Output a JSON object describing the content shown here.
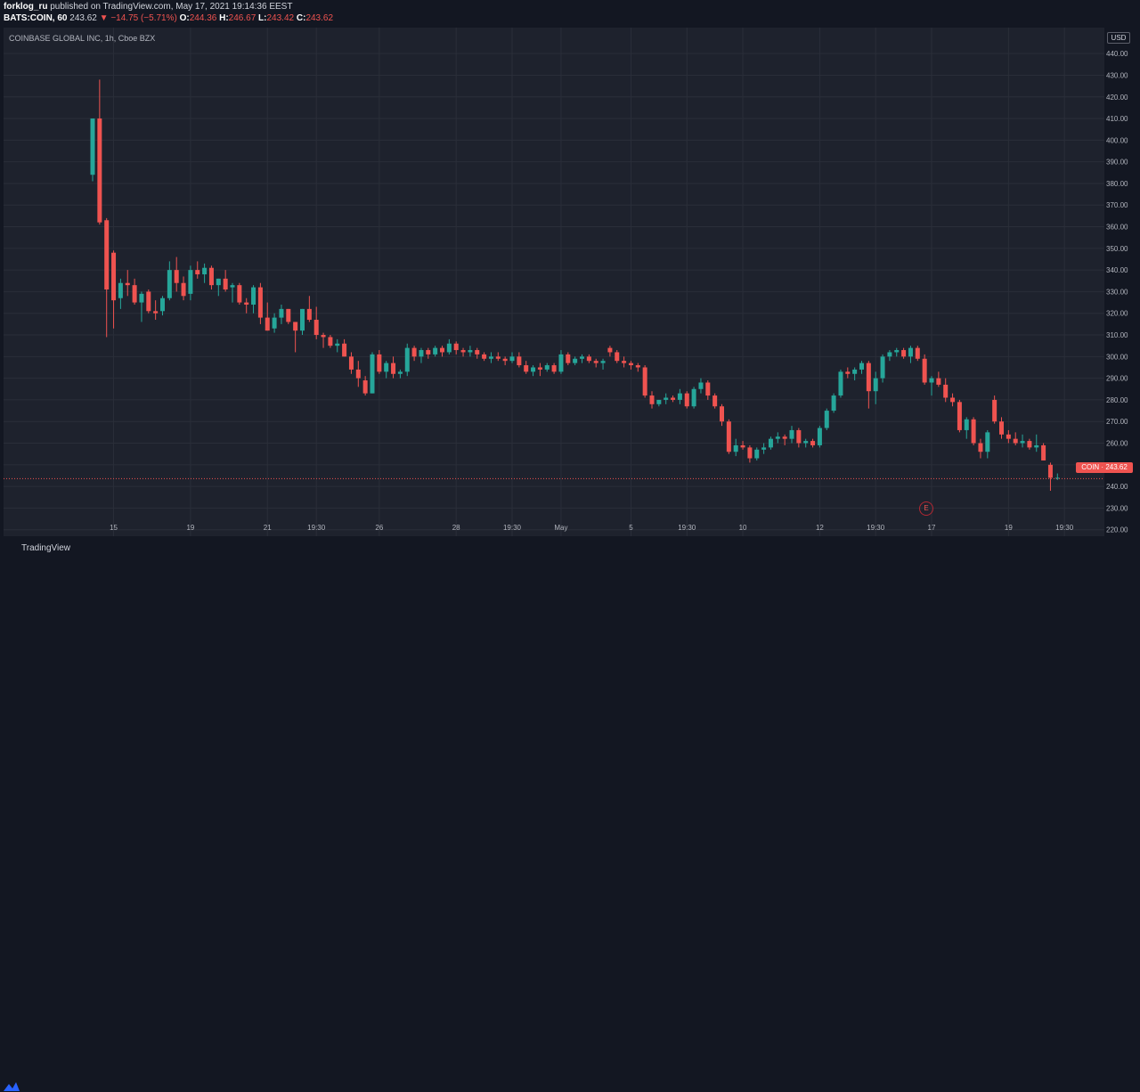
{
  "header": {
    "author": "forklog_ru",
    "published": "published on TradingView.com, May 17, 2021 19:14:36 EEST",
    "symbol": "BATS:COIN, 60",
    "last": "243.62",
    "change": "▼ −14.75 (−5.71%)",
    "o_label": "O:",
    "o_value": "244.36",
    "h_label": "H:",
    "h_value": "246.67",
    "l_label": "L:",
    "l_value": "243.42",
    "c_label": "C:",
    "c_value": "243.62"
  },
  "legend": "COINBASE GLOBAL INC, 1h, Cboe BZX",
  "currency": "USD",
  "price_tag": "COIN · 243.62",
  "earnings_marker": "E",
  "brand": "TradingView",
  "colors": {
    "up": "#26a69a",
    "down": "#ef5350",
    "background": "#1e222d",
    "grid": "#2a2e39"
  },
  "chart_data": {
    "type": "candlestick",
    "ylim": [
      217,
      452
    ],
    "y_ticks": [
      440,
      430,
      420,
      410,
      400,
      390,
      380,
      370,
      360,
      350,
      340,
      330,
      320,
      310,
      300,
      290,
      280,
      270,
      260,
      250,
      240,
      230,
      220
    ],
    "x_ticks": [
      {
        "label": "15",
        "i": 3
      },
      {
        "label": "19",
        "i": 14
      },
      {
        "label": "21",
        "i": 25
      },
      {
        "label": "19:30",
        "i": 32
      },
      {
        "label": "26",
        "i": 41
      },
      {
        "label": "28",
        "i": 52
      },
      {
        "label": "19:30",
        "i": 60
      },
      {
        "label": "May",
        "i": 67
      },
      {
        "label": "5",
        "i": 77
      },
      {
        "label": "19:30",
        "i": 85
      },
      {
        "label": "10",
        "i": 93
      },
      {
        "label": "12",
        "i": 104
      },
      {
        "label": "19:30",
        "i": 112
      },
      {
        "label": "17",
        "i": 120
      },
      {
        "label": "19",
        "i": 131
      },
      {
        "label": "19:30",
        "i": 139
      }
    ],
    "last_price": 243.62,
    "candles": [
      [
        384,
        410,
        381,
        410
      ],
      [
        410,
        428,
        361,
        362
      ],
      [
        363,
        364,
        309,
        331
      ],
      [
        348,
        349,
        313,
        326
      ],
      [
        327,
        336,
        322,
        334
      ],
      [
        334,
        340,
        328,
        333
      ],
      [
        333,
        336,
        324,
        325
      ],
      [
        325,
        330,
        316,
        329
      ],
      [
        330,
        331,
        320,
        321
      ],
      [
        321,
        326,
        317,
        320
      ],
      [
        321,
        328,
        319,
        327
      ],
      [
        327,
        344,
        326,
        340
      ],
      [
        340,
        346,
        330,
        334
      ],
      [
        334,
        337,
        326,
        328
      ],
      [
        329,
        342,
        326,
        340
      ],
      [
        340,
        344,
        336,
        338
      ],
      [
        338,
        343,
        334,
        341
      ],
      [
        341,
        342,
        331,
        333
      ],
      [
        333,
        336,
        328,
        336
      ],
      [
        336,
        340,
        330,
        331
      ],
      [
        332,
        334,
        325,
        333
      ],
      [
        333,
        334,
        324,
        325
      ],
      [
        325,
        327,
        320,
        324
      ],
      [
        324,
        333,
        320,
        332
      ],
      [
        332,
        334,
        315,
        318
      ],
      [
        318,
        325,
        312,
        312
      ],
      [
        313,
        320,
        311,
        318
      ],
      [
        318,
        324,
        315,
        322
      ],
      [
        322,
        322,
        315,
        316
      ],
      [
        316,
        316,
        302,
        312
      ],
      [
        312,
        322,
        310,
        322
      ],
      [
        322,
        328,
        316,
        317
      ],
      [
        317,
        323,
        308,
        310
      ],
      [
        310,
        311,
        304,
        309
      ],
      [
        309,
        310,
        304,
        305
      ],
      [
        305,
        308,
        302,
        306
      ],
      [
        306,
        308,
        300,
        300
      ],
      [
        300,
        302,
        292,
        294
      ],
      [
        294,
        298,
        286,
        290
      ],
      [
        289,
        291,
        282,
        283
      ],
      [
        283,
        302,
        283,
        301
      ],
      [
        301,
        303,
        292,
        293
      ],
      [
        293,
        298,
        290,
        297
      ],
      [
        297,
        300,
        290,
        292
      ],
      [
        292,
        294,
        290,
        293
      ],
      [
        293,
        306,
        291,
        304
      ],
      [
        304,
        305,
        298,
        300
      ],
      [
        300,
        304,
        297,
        303
      ],
      [
        303,
        304,
        299,
        301
      ],
      [
        301,
        305,
        300,
        304
      ],
      [
        304,
        305,
        300,
        302
      ],
      [
        302,
        308,
        301,
        306
      ],
      [
        306,
        307,
        301,
        303
      ],
      [
        303,
        304,
        300,
        302
      ],
      [
        302,
        305,
        300,
        303
      ],
      [
        303,
        304,
        299,
        301
      ],
      [
        301,
        302,
        298,
        299
      ],
      [
        299,
        302,
        297,
        300
      ],
      [
        300,
        302,
        298,
        299
      ],
      [
        299,
        300,
        296,
        298
      ],
      [
        298,
        302,
        297,
        300
      ],
      [
        300,
        302,
        295,
        296
      ],
      [
        296,
        298,
        292,
        293
      ],
      [
        293,
        296,
        291,
        295
      ],
      [
        295,
        297,
        291,
        294
      ],
      [
        294,
        297,
        293,
        296
      ],
      [
        296,
        297,
        292,
        293
      ],
      [
        293,
        303,
        292,
        301
      ],
      [
        301,
        302,
        296,
        297
      ],
      [
        297,
        300,
        296,
        299
      ],
      [
        299,
        301,
        297,
        300
      ],
      [
        300,
        301,
        297,
        298
      ],
      [
        298,
        299,
        295,
        297
      ],
      [
        297,
        299,
        294,
        298
      ],
      [
        304,
        305,
        300,
        302
      ],
      [
        302,
        303,
        297,
        298
      ],
      [
        298,
        300,
        295,
        297
      ],
      [
        297,
        298,
        294,
        296
      ],
      [
        296,
        297,
        293,
        295
      ],
      [
        295,
        296,
        281,
        282
      ],
      [
        282,
        284,
        276,
        278
      ],
      [
        278,
        280,
        277,
        280
      ],
      [
        280,
        283,
        278,
        281
      ],
      [
        281,
        282,
        279,
        280
      ],
      [
        280,
        285,
        278,
        283
      ],
      [
        283,
        284,
        276,
        277
      ],
      [
        277,
        286,
        276,
        285
      ],
      [
        285,
        290,
        283,
        288
      ],
      [
        288,
        289,
        280,
        282
      ],
      [
        282,
        283,
        276,
        277
      ],
      [
        277,
        278,
        268,
        270
      ],
      [
        270,
        271,
        255,
        256
      ],
      [
        256,
        262,
        254,
        259
      ],
      [
        259,
        261,
        257,
        258
      ],
      [
        258,
        259,
        251,
        253
      ],
      [
        253,
        258,
        252,
        257
      ],
      [
        257,
        260,
        255,
        258
      ],
      [
        258,
        263,
        257,
        262
      ],
      [
        262,
        265,
        260,
        263
      ],
      [
        263,
        264,
        259,
        262
      ],
      [
        262,
        268,
        260,
        266
      ],
      [
        266,
        267,
        258,
        260
      ],
      [
        260,
        262,
        258,
        261
      ],
      [
        261,
        262,
        258,
        259
      ],
      [
        259,
        268,
        258,
        267
      ],
      [
        267,
        276,
        266,
        275
      ],
      [
        275,
        283,
        274,
        282
      ],
      [
        282,
        294,
        281,
        293
      ],
      [
        293,
        295,
        290,
        292
      ],
      [
        292,
        295,
        289,
        294
      ],
      [
        294,
        298,
        292,
        297
      ],
      [
        297,
        298,
        276,
        284
      ],
      [
        284,
        293,
        278,
        290
      ],
      [
        290,
        301,
        288,
        300
      ],
      [
        300,
        303,
        298,
        302
      ],
      [
        302,
        304,
        300,
        303
      ],
      [
        303,
        304,
        299,
        300
      ],
      [
        300,
        305,
        297,
        304
      ],
      [
        304,
        305,
        298,
        299
      ],
      [
        299,
        301,
        287,
        288
      ],
      [
        288,
        291,
        282,
        290
      ],
      [
        290,
        293,
        286,
        287
      ],
      [
        287,
        290,
        279,
        281
      ],
      [
        281,
        283,
        277,
        279
      ],
      [
        279,
        280,
        265,
        266
      ],
      [
        266,
        272,
        262,
        271
      ],
      [
        271,
        272,
        259,
        260
      ],
      [
        260,
        262,
        253,
        256
      ],
      [
        256,
        266,
        253,
        265
      ],
      [
        280,
        282,
        269,
        270
      ],
      [
        270,
        272,
        262,
        264
      ],
      [
        264,
        266,
        260,
        262
      ],
      [
        262,
        265,
        259,
        260
      ],
      [
        260,
        264,
        258,
        261
      ],
      [
        261,
        262,
        257,
        258
      ],
      [
        258,
        264,
        256,
        259
      ],
      [
        259,
        260,
        252,
        252
      ],
      [
        250,
        251,
        238,
        244
      ],
      [
        244,
        246,
        243,
        244
      ]
    ]
  }
}
